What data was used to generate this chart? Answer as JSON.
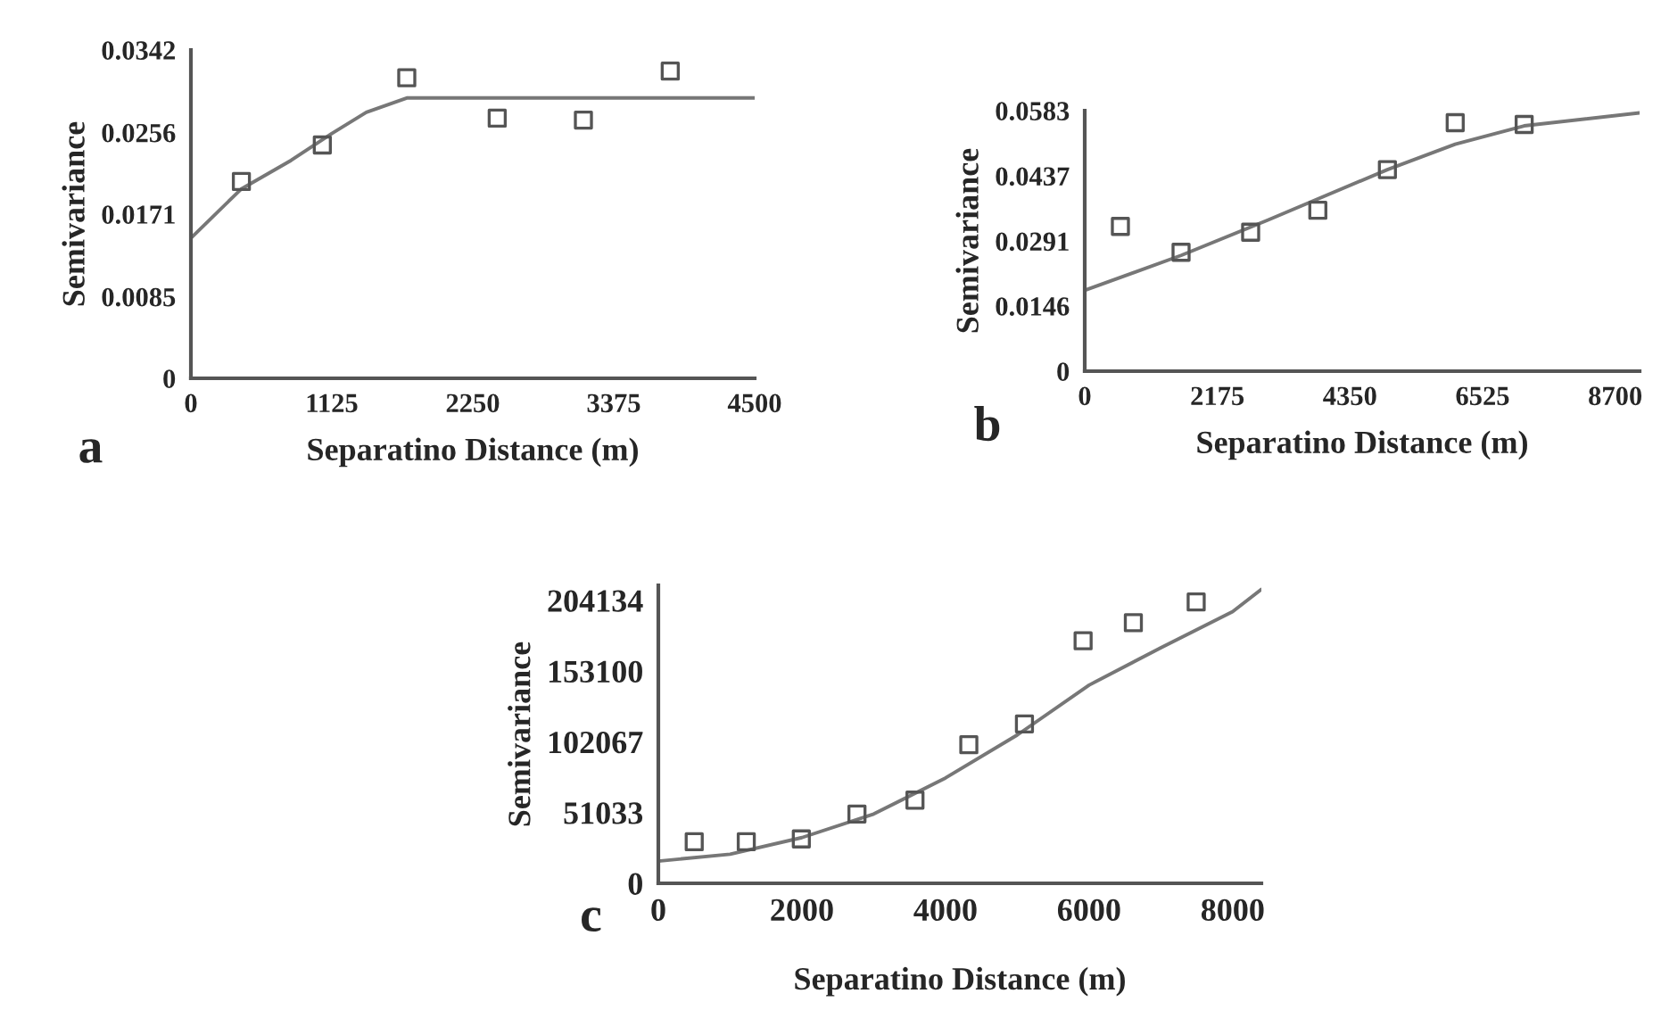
{
  "chart_data": [
    {
      "type": "scatter",
      "xlabel": "Separatino Distance (m)",
      "ylabel": "Semivariance",
      "annotations": [
        "a"
      ],
      "xlim": [
        0,
        4500
      ],
      "ylim": [
        0,
        0.0342
      ],
      "xticks": [
        0,
        1125,
        2250,
        3375,
        4500
      ],
      "yticks": [
        0,
        0.0085,
        0.0171,
        0.0256,
        0.0342
      ],
      "grid": false,
      "legend": false,
      "series": [
        {
          "marker": "square",
          "color": "#555555",
          "x": [
            403,
            1049,
            1723,
            2445,
            3133,
            3826
          ],
          "values": [
            0.0205,
            0.0243,
            0.0313,
            0.0271,
            0.0269,
            0.032
          ]
        },
        {
          "type": "line",
          "marker": "none",
          "color": "#777777",
          "line_style": "solid",
          "x": [
            0,
            400,
            800,
            1125,
            1400,
            1723,
            4500
          ],
          "values": [
            0.0146,
            0.0197,
            0.0227,
            0.0255,
            0.0277,
            0.0292,
            0.0292
          ]
        }
      ]
    },
    {
      "type": "scatter",
      "xlabel": "Separatino Distance (m)",
      "ylabel": "Semivariance",
      "annotations": [
        "b"
      ],
      "xlim": [
        0,
        9100
      ],
      "ylim": [
        0,
        0.0583
      ],
      "xticks": [
        0,
        2175,
        4350,
        6525,
        8700
      ],
      "yticks": [
        0,
        0.0146,
        0.0291,
        0.0437,
        0.0583
      ],
      "grid": false,
      "legend": false,
      "series": [
        {
          "marker": "square",
          "color": "#555555",
          "x": [
            585,
            1580,
            2721,
            3823,
            4964,
            6076,
            7207
          ],
          "values": [
            0.0324,
            0.0266,
            0.0311,
            0.036,
            0.0451,
            0.0556,
            0.0552
          ]
        },
        {
          "type": "line",
          "marker": "none",
          "color": "#777777",
          "line_style": "solid",
          "x": [
            0,
            1580,
            3000,
            4964,
            6076,
            7207,
            9100
          ],
          "values": [
            0.0181,
            0.0259,
            0.0338,
            0.0451,
            0.0508,
            0.0549,
            0.0578
          ]
        }
      ]
    },
    {
      "type": "scatter",
      "xlabel": "Separatino Distance (m)",
      "ylabel": "Semivariance",
      "annotations": [
        "c"
      ],
      "xlim": [
        0,
        8400
      ],
      "ylim": [
        0,
        215000
      ],
      "xticks": [
        0,
        2000,
        4000,
        6000,
        8000
      ],
      "yticks": [
        0,
        51033,
        102067,
        153100,
        204134
      ],
      "grid": false,
      "legend": false,
      "series": [
        {
          "marker": "square",
          "color": "#555555",
          "x": [
            500,
            1225,
            1992,
            2767,
            3575,
            4325,
            5100,
            5917,
            6617,
            7492
          ],
          "values": [
            30000,
            30000,
            32000,
            50000,
            60000,
            100000,
            115000,
            175000,
            188000,
            203000
          ]
        },
        {
          "type": "line",
          "marker": "none",
          "color": "#777777",
          "line_style": "solid",
          "x": [
            0,
            1000,
            2000,
            3000,
            4000,
            5000,
            6000,
            7000,
            8000,
            8400
          ],
          "values": [
            16000,
            21000,
            33000,
            50000,
            76000,
            107000,
            143000,
            170000,
            196000,
            212000
          ]
        }
      ]
    }
  ]
}
